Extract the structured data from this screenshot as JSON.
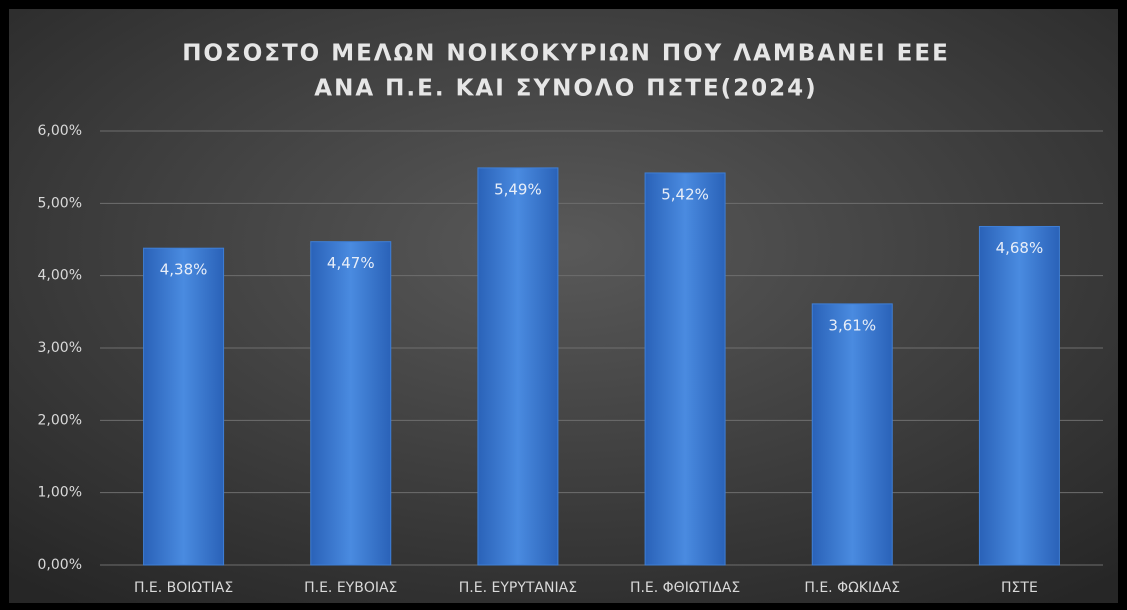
{
  "chart_data": {
    "type": "bar",
    "title": [
      "ΠΟΣΟΣΤΟ ΜΕΛΩΝ ΝΟΙΚΟΚΥΡΙΩΝ ΠΟΥ ΛΑΜΒΑΝΕΙ ΕΕΕ",
      "ΑΝΑ Π.Ε. ΚΑΙ ΣΥΝΟΛΟ ΠΣΤΕ(2024)"
    ],
    "categories": [
      "Π.Ε. ΒΟΙΩΤΙΑΣ",
      "Π.Ε. ΕΥΒΟΙΑΣ",
      "Π.Ε. ΕΥΡΥΤΑΝΙΑΣ",
      "Π.Ε. ΦΘΙΩΤΙΔΑΣ",
      "Π.Ε. ΦΩΚΙΔΑΣ",
      "ΠΣΤΕ"
    ],
    "values": [
      4.38,
      4.47,
      5.49,
      5.42,
      3.61,
      4.68
    ],
    "value_labels": [
      "4,38%",
      "4,47%",
      "5,49%",
      "5,42%",
      "3,61%",
      "4,68%"
    ],
    "color": "#3f7fd6",
    "ylim": [
      0,
      6
    ],
    "yticks": [
      {
        "value": 0,
        "label": "0,00%"
      },
      {
        "value": 1,
        "label": "1,00%"
      },
      {
        "value": 2,
        "label": "2,00%"
      },
      {
        "value": 3,
        "label": "3,00%"
      },
      {
        "value": 4,
        "label": "4,00%"
      },
      {
        "value": 5,
        "label": "5,00%"
      },
      {
        "value": 6,
        "label": "6,00%"
      }
    ],
    "grid": true
  }
}
